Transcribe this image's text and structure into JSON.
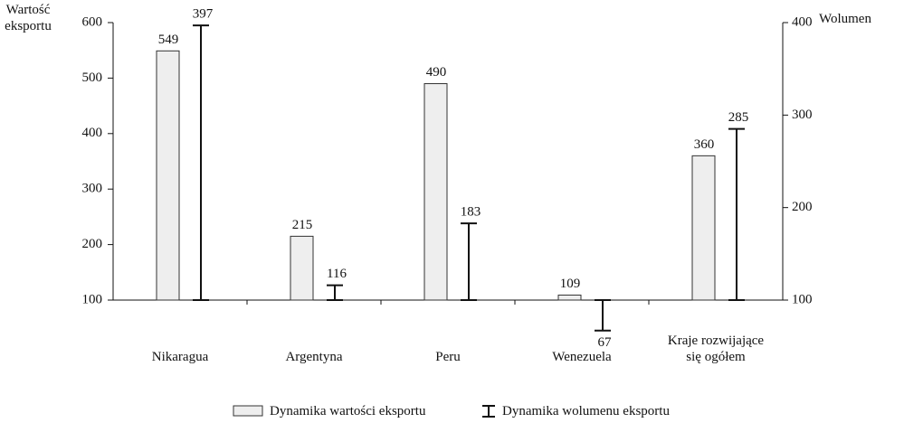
{
  "chart_data": {
    "type": "bar",
    "y_label": "Wartość eksportu",
    "y2_label": "Wolumen",
    "categories": [
      "Nikaragua",
      "Argentyna",
      "Peru",
      "Wenezuela",
      "Kraje rozwijające się ogółem"
    ],
    "series": [
      {
        "name": "Dynamika wartości eksportu",
        "color": "#eeeeee",
        "values": [
          549,
          215,
          490,
          109,
          360
        ]
      },
      {
        "name": "Dynamika wolumenu eksportu",
        "color": "#111111",
        "axis": "y2",
        "values": [
          397,
          116,
          183,
          67,
          285
        ]
      }
    ],
    "ylim": [
      100,
      600
    ],
    "yticks": [
      100,
      200,
      300,
      400,
      500,
      600
    ],
    "y2lim": [
      100,
      400
    ],
    "y2ticks": [
      100,
      200,
      300,
      400
    ]
  }
}
